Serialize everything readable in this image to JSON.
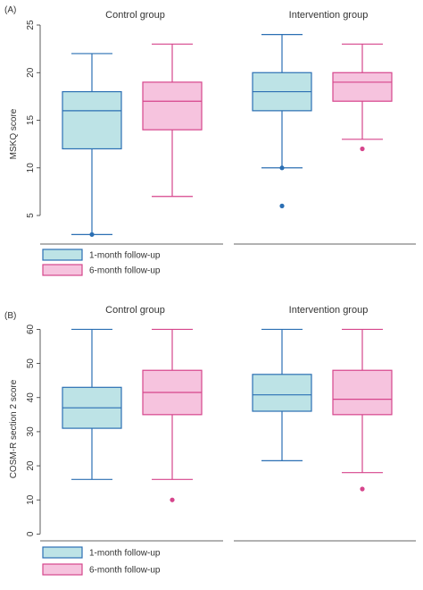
{
  "colors": {
    "series1_fill": "#bde3e6",
    "series1_line": "#2b6fb3",
    "series2_fill": "#f6c3de",
    "series2_line": "#d6458c",
    "axis": "#333333"
  },
  "legend": {
    "items": [
      "1-month follow-up",
      "6-month follow-up"
    ]
  },
  "chart_data": [
    {
      "type": "box",
      "panel_label": "(A)",
      "ylabel": "MSKQ score",
      "ylim": [
        2,
        25
      ],
      "yticks": [
        5,
        10,
        15,
        20,
        25
      ],
      "groups": [
        "Control group",
        "Intervention group"
      ],
      "series": [
        {
          "name": "1-month follow-up",
          "boxes": [
            {
              "group": "Control group",
              "min": 3,
              "q1": 12,
              "median": 16,
              "q3": 18,
              "max": 22,
              "outliers": [
                3
              ]
            },
            {
              "group": "Intervention group",
              "min": 10,
              "q1": 16,
              "median": 18,
              "q3": 20,
              "max": 24,
              "outliers": [
                10,
                6
              ]
            }
          ]
        },
        {
          "name": "6-month follow-up",
          "boxes": [
            {
              "group": "Control group",
              "min": 7,
              "q1": 14,
              "median": 17,
              "q3": 19,
              "max": 23,
              "outliers": []
            },
            {
              "group": "Intervention group",
              "min": 13,
              "q1": 17,
              "median": 19,
              "q3": 20,
              "max": 23,
              "outliers": [
                12
              ]
            }
          ]
        }
      ]
    },
    {
      "type": "box",
      "panel_label": "(B)",
      "ylabel": "COSM-R section 2 score",
      "ylim": [
        -2,
        63
      ],
      "yticks": [
        0,
        10,
        20,
        30,
        40,
        50,
        60
      ],
      "groups": [
        "Control group",
        "Intervention group"
      ],
      "series": [
        {
          "name": "1-month follow-up",
          "boxes": [
            {
              "group": "Control group",
              "min": 16,
              "q1": 31,
              "median": 37,
              "q3": 43,
              "max": 60,
              "outliers": []
            },
            {
              "group": "Intervention group",
              "min": 21.5,
              "q1": 36,
              "median": 40.8,
              "q3": 46.8,
              "max": 60,
              "outliers": []
            }
          ]
        },
        {
          "name": "6-month follow-up",
          "boxes": [
            {
              "group": "Control group",
              "min": 16,
              "q1": 35,
              "median": 41.5,
              "q3": 48,
              "max": 60,
              "outliers": [
                10
              ]
            },
            {
              "group": "Intervention group",
              "min": 18,
              "q1": 35,
              "median": 39.5,
              "q3": 48,
              "max": 60,
              "outliers": [
                13.2
              ]
            }
          ]
        }
      ]
    }
  ]
}
